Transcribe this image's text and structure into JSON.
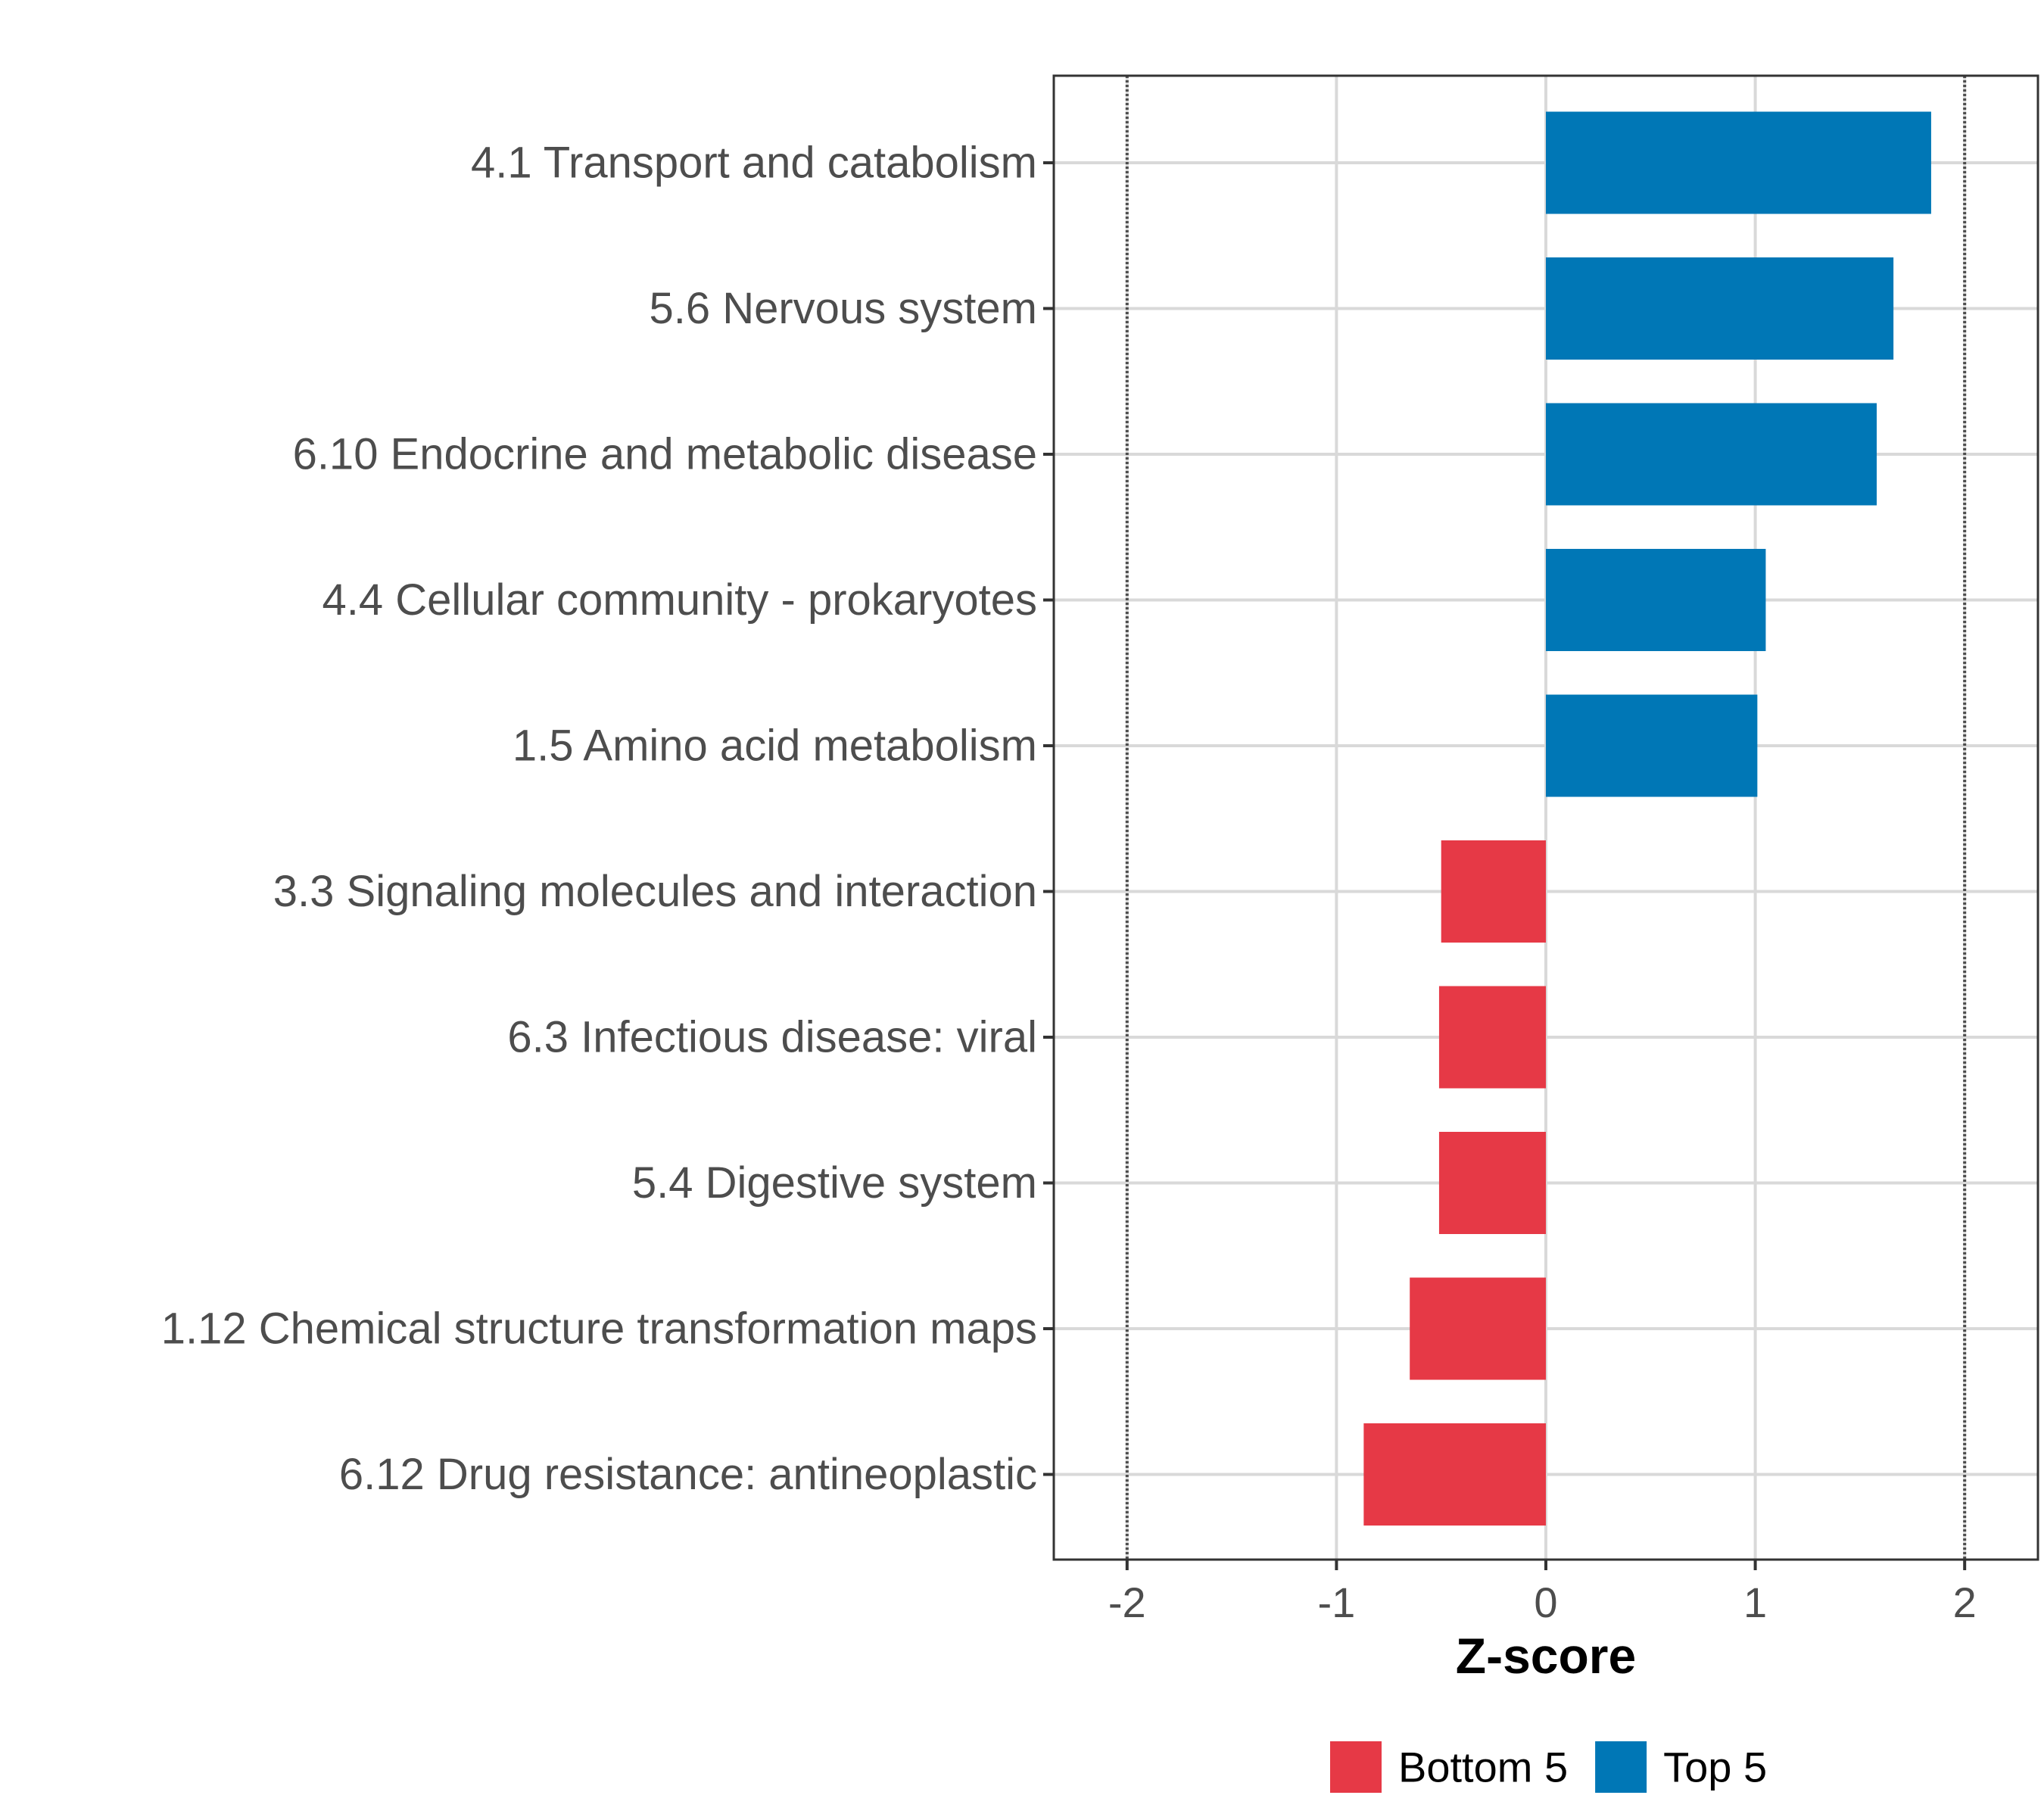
{
  "chart_data": {
    "type": "bar",
    "orientation": "horizontal",
    "xlabel": "Z-score",
    "ylabel": "",
    "xlim": [
      -2.35,
      2.35
    ],
    "x_ticks": [
      -2,
      -1,
      0,
      1,
      2
    ],
    "reference_lines": [
      -2,
      2
    ],
    "grid": true,
    "legend_position": "bottom",
    "categories": [
      "4.1 Transport and catabolism",
      "5.6 Nervous system",
      "6.10 Endocrine and metabolic disease",
      "4.4 Cellular community - prokaryotes",
      "1.5 Amino acid metabolism",
      "3.3 Signaling molecules and interaction",
      "6.3 Infectious disease: viral",
      "5.4 Digestive system",
      "1.12 Chemical structure transformation maps",
      "6.12 Drug resistance: antineoplastic"
    ],
    "values": [
      1.84,
      1.66,
      1.58,
      1.05,
      1.01,
      -0.5,
      -0.51,
      -0.51,
      -0.65,
      -0.87
    ],
    "groups": [
      "Top 5",
      "Top 5",
      "Top 5",
      "Top 5",
      "Top 5",
      "Bottom 5",
      "Bottom 5",
      "Bottom 5",
      "Bottom 5",
      "Bottom 5"
    ],
    "legend": [
      {
        "label": "Bottom 5",
        "color": "#E63946"
      },
      {
        "label": "Top 5",
        "color": "#0077B6"
      }
    ]
  },
  "colors": {
    "grid": "#d9d9d9",
    "ref_line": "#4d4d4d",
    "panel_border": "#333333"
  }
}
